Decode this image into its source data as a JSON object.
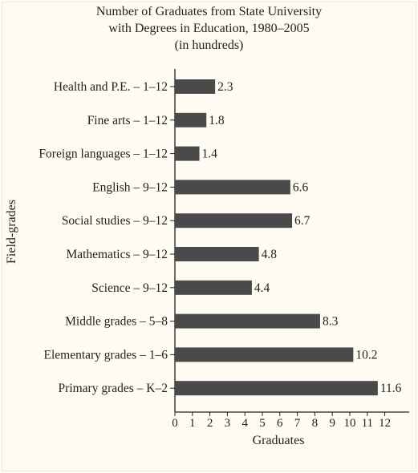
{
  "chart_data": {
    "type": "bar",
    "orientation": "horizontal",
    "title_lines": [
      "Number of Graduates from State University",
      "with Degrees in Education, 1980–2005",
      "(in hundreds)"
    ],
    "xlabel": "Graduates",
    "ylabel": "Field-grades",
    "xlim": [
      0,
      13
    ],
    "xticks": [
      0,
      1,
      2,
      3,
      4,
      5,
      6,
      7,
      8,
      9,
      10,
      11,
      12
    ],
    "grid": false,
    "bar_color": "#4a4a4a",
    "categories": [
      "Health and P.E. – 1–12",
      "Fine arts – 1–12",
      "Foreign languages – 1–12",
      "English – 9–12",
      "Social studies – 9–12",
      "Mathematics – 9–12",
      "Science – 9–12",
      "Middle grades – 5–8",
      "Elementary grades – 1–6",
      "Primary grades – K–2"
    ],
    "values": [
      2.3,
      1.8,
      1.4,
      6.6,
      6.7,
      4.8,
      4.4,
      8.3,
      10.2,
      11.6
    ],
    "value_labels": [
      "2.3",
      "1.8",
      "1.4",
      "6.6",
      "6.7",
      "4.8",
      "4.4",
      "8.3",
      "10.2",
      "11.6"
    ]
  }
}
